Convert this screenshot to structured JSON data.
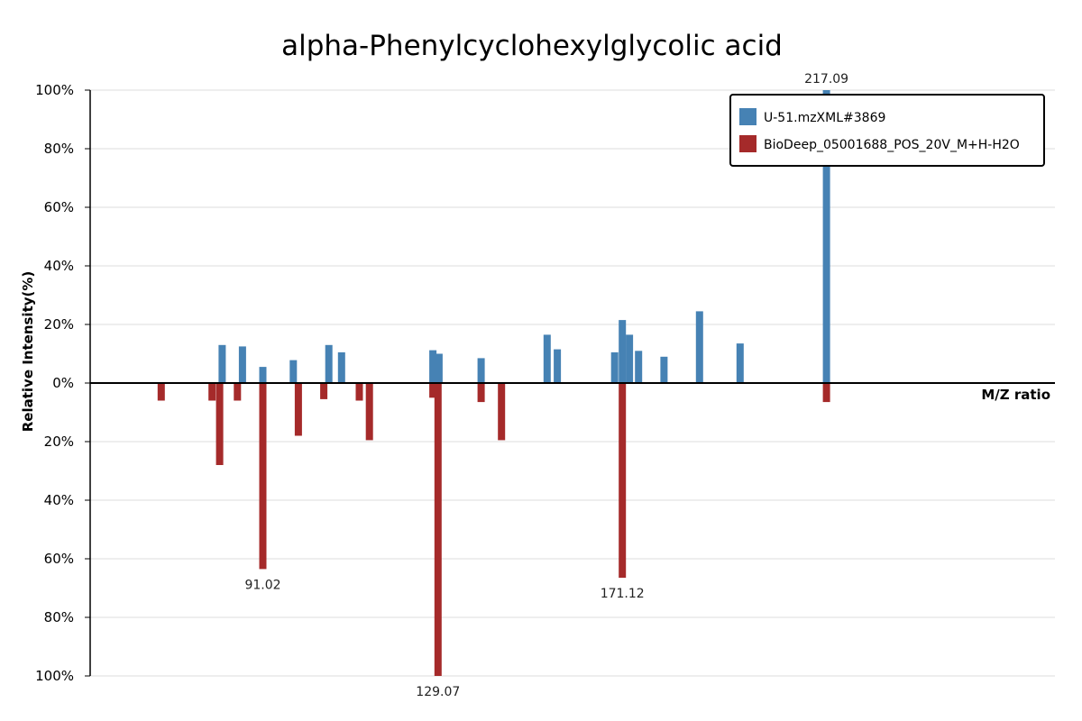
{
  "chart_data": {
    "type": "bar",
    "title": "alpha-Phenylcyclohexylglycolic acid",
    "xlabel": "M/Z ratio",
    "ylabel": "Relative Intensity(%)",
    "y_ticks_top": [
      "100%",
      "80%",
      "60%",
      "40%",
      "20%",
      "0%"
    ],
    "y_ticks_bottom": [
      "20%",
      "40%",
      "60%",
      "80%",
      "100%"
    ],
    "ylim": [
      -100,
      100
    ],
    "xlim": [
      45,
      235
    ],
    "grid": true,
    "legend_position": "top-right",
    "series": [
      {
        "name": "U-51.mzXML#3869",
        "color": "#4682b4",
        "direction": "up",
        "points": [
          {
            "mz": 71.0,
            "intensity": 13
          },
          {
            "mz": 75.0,
            "intensity": 12.5
          },
          {
            "mz": 79.0,
            "intensity": 5.5
          },
          {
            "mz": 85.0,
            "intensity": 7.8
          },
          {
            "mz": 92.0,
            "intensity": 13
          },
          {
            "mz": 94.5,
            "intensity": 10.5
          },
          {
            "mz": 112.5,
            "intensity": 11.2
          },
          {
            "mz": 113.7,
            "intensity": 10
          },
          {
            "mz": 122.0,
            "intensity": 8.5
          },
          {
            "mz": 135.0,
            "intensity": 16.5
          },
          {
            "mz": 137.0,
            "intensity": 11.5
          },
          {
            "mz": 148.3,
            "intensity": 10.5
          },
          {
            "mz": 149.8,
            "intensity": 21.5
          },
          {
            "mz": 151.2,
            "intensity": 16.5
          },
          {
            "mz": 153.0,
            "intensity": 11
          },
          {
            "mz": 158.0,
            "intensity": 9
          },
          {
            "mz": 165.0,
            "intensity": 24.5
          },
          {
            "mz": 173.0,
            "intensity": 13.5
          },
          {
            "mz": 190.0,
            "intensity": 100
          }
        ]
      },
      {
        "name": "BioDeep_05001688_POS_20V_M+H-H2O",
        "color": "#a52a2a",
        "direction": "down",
        "points": [
          {
            "mz": 59.0,
            "intensity": 6
          },
          {
            "mz": 69.0,
            "intensity": 6
          },
          {
            "mz": 70.5,
            "intensity": 28
          },
          {
            "mz": 74.0,
            "intensity": 6
          },
          {
            "mz": 79.0,
            "intensity": 63.5
          },
          {
            "mz": 86.0,
            "intensity": 18
          },
          {
            "mz": 91.0,
            "intensity": 5.5
          },
          {
            "mz": 98.0,
            "intensity": 6
          },
          {
            "mz": 100.0,
            "intensity": 19.5
          },
          {
            "mz": 112.5,
            "intensity": 5
          },
          {
            "mz": 113.5,
            "intensity": 100
          },
          {
            "mz": 122.0,
            "intensity": 6.5
          },
          {
            "mz": 126.0,
            "intensity": 19.5
          },
          {
            "mz": 149.8,
            "intensity": 66.5
          },
          {
            "mz": 190.0,
            "intensity": 6.5
          }
        ]
      }
    ],
    "annotations": [
      {
        "text": "217.09",
        "mz": 190.0,
        "side": "up"
      },
      {
        "text": "91.02",
        "mz": 79.0,
        "side": "down",
        "intensity": 63.5
      },
      {
        "text": "129.07",
        "mz": 113.5,
        "side": "down",
        "intensity": 100
      },
      {
        "text": "171.12",
        "mz": 149.8,
        "side": "down",
        "intensity": 66.5
      }
    ]
  }
}
